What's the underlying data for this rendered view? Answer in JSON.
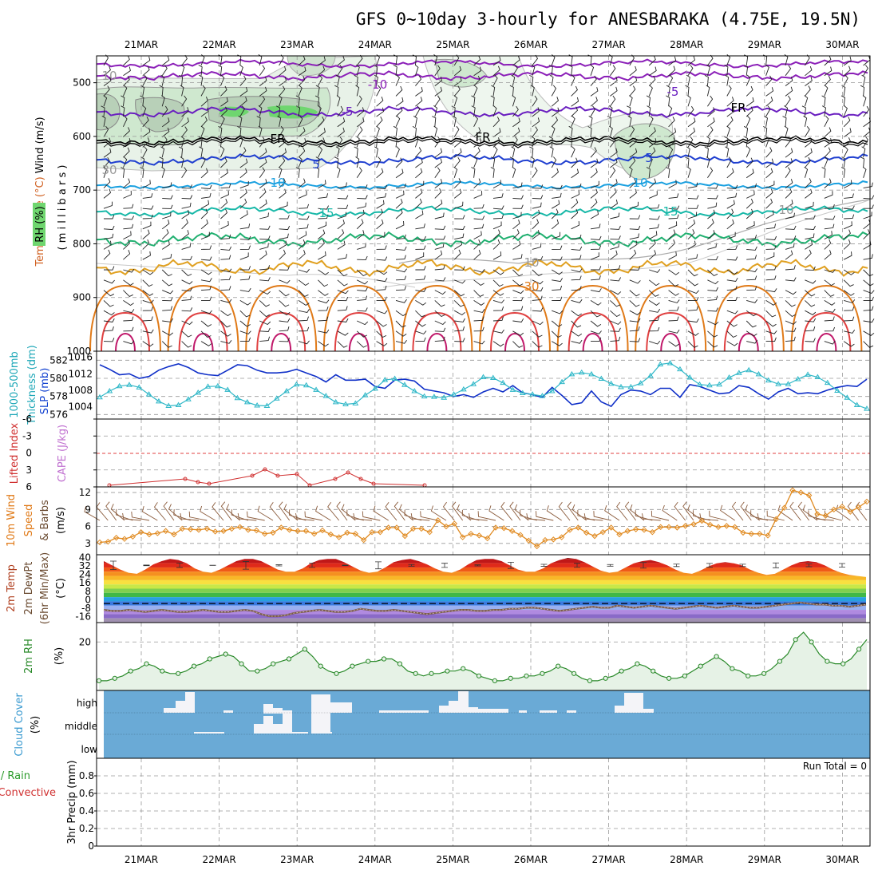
{
  "title": "GFS 0~10day 3-hourly for ANESBARAKA (4.75E, 19.5N)",
  "dates": [
    "21MAR",
    "22MAR",
    "23MAR",
    "24MAR",
    "25MAR",
    "26MAR",
    "27MAR",
    "28MAR",
    "29MAR",
    "30MAR"
  ],
  "colors": {
    "temp_minus10": "#8b1fb8",
    "temp_minus5": "#6a1fc0",
    "temp_5": "#1f3fd0",
    "temp_10": "#1aa0e0",
    "temp_15": "#18b8a8",
    "temp_20": "#20b070",
    "temp_25": "#e0a020",
    "temp_30": "#e07a18",
    "temp_35": "#e04040",
    "temp_40": "#c0186a",
    "thickness": "#1030c8",
    "slp": "#30b8c8",
    "lifted_index": "#d03030",
    "wind_speed": "#e08a20",
    "wind_barb": "#8a5a3a",
    "rh_line": "#2a8a2a",
    "cloud_bg": "#6aaad6",
    "cloud_fill": "#f4f4f8",
    "rh_fill_light": "#cfe8cf",
    "rh_fill_dark": "#6fd66f"
  },
  "panels": {
    "upper": {
      "ylabels": [
        "Wind (m/s)",
        "Temperature (°C)",
        "RH (%)",
        "( m i l l i b a r s )"
      ],
      "yticks": [
        "500",
        "600",
        "700",
        "800",
        "900",
        "1000"
      ],
      "contour_labels": {
        "minus10": "-10",
        "minus5": "-5",
        "fr": "FR",
        "t5": "5",
        "t10": "10",
        "t15": "15",
        "t30": "30",
        "rh10": "10",
        "rh30": "30"
      }
    },
    "thickness": {
      "ylabels": [
        "1000-500mb",
        "Thickness (dm)",
        "SLP (mb)"
      ],
      "yticks_left": [
        "582",
        "580",
        "578",
        "576"
      ],
      "yticks_right": [
        "1016",
        "1012",
        "1008",
        "1004"
      ]
    },
    "lifted": {
      "ylabels": [
        "Lifted Index",
        "CAPE (J/kg)"
      ],
      "yticks": [
        "-6",
        "-3",
        "0",
        "3",
        "6"
      ]
    },
    "wind10": {
      "ylabels": [
        "10m Wind",
        "Speed",
        "& Barbs",
        "(m/s)"
      ],
      "yticks": [
        "12",
        "9",
        "6",
        "3"
      ]
    },
    "temp2m": {
      "ylabels": [
        "2m Temp",
        "2m DewPt",
        "(6hr Min/Max)",
        "(°C)"
      ],
      "yticks": [
        "40",
        "32",
        "24",
        "16",
        "8",
        "0",
        "-8",
        "-16"
      ]
    },
    "rh2m": {
      "ylabels": [
        "2m RH",
        "(%)"
      ],
      "yticks": [
        "20"
      ]
    },
    "cloud": {
      "ylabels": [
        "Cloud Cover",
        "(%)"
      ],
      "levels": [
        "high",
        "middle",
        "low"
      ]
    },
    "precip": {
      "ylabels": [
        "Total / Rain",
        "Convective",
        "3hr Precip (mm)"
      ],
      "yticks": [
        "0.8",
        "0.6",
        "0.4",
        "0.2",
        "0"
      ],
      "run_total": "Run Total = 0"
    }
  },
  "chart_data": [
    {
      "type": "line",
      "title": "1000-500mb Thickness (dm) / SLP (mb)",
      "x_unit": "3-hourly steps from 20MAR 12Z",
      "series": [
        {
          "name": "Thickness (dm)",
          "values": [
            581.5,
            581.0,
            580.4,
            580.5,
            580.0,
            580.2,
            580.9,
            581.3,
            581.6,
            581.2,
            580.6,
            580.4,
            580.3,
            580.9,
            581.5,
            581.4,
            580.9,
            580.6,
            580.6,
            580.7,
            581.0,
            580.6,
            580.2,
            579.6,
            580.4,
            579.8,
            579.8,
            579.9,
            579.1,
            578.9,
            579.8,
            579.9,
            579.7,
            578.8,
            578.6,
            578.4,
            578.0,
            578.2,
            577.9,
            578.5,
            578.9,
            578.5,
            579.2,
            578.4,
            578.2,
            577.9,
            579.0,
            578.1,
            577.1,
            577.3,
            578.6,
            577.4,
            576.9,
            578.2,
            578.7,
            578.6,
            578.2,
            578.9,
            578.9,
            577.9,
            579.3,
            579.1,
            578.7,
            578.3,
            578.4,
            579.2,
            579.0,
            578.3,
            577.7,
            578.5,
            578.9,
            578.3,
            578.4,
            578.3,
            578.7,
            579.0,
            579.2,
            579.1,
            579.9
          ]
        },
        {
          "name": "SLP (mb)",
          "values": [
            1006.3,
            1007.8,
            1009.0,
            1009.3,
            1008.7,
            1007.0,
            1005.3,
            1004.2,
            1004.4,
            1005.8,
            1007.4,
            1008.9,
            1009.0,
            1008.1,
            1006.1,
            1005.1,
            1004.3,
            1004.2,
            1006.0,
            1007.8,
            1009.4,
            1009.2,
            1008.1,
            1006.6,
            1005.1,
            1004.6,
            1004.8,
            1006.8,
            1008.4,
            1010.5,
            1010.8,
            1009.3,
            1007.8,
            1006.5,
            1006.4,
            1006.2,
            1007.0,
            1008.2,
            1009.5,
            1011.2,
            1011.0,
            1009.8,
            1008.1,
            1007.3,
            1007.0,
            1006.6,
            1007.8,
            1010.0,
            1011.9,
            1012.3,
            1011.9,
            1010.8,
            1009.6,
            1008.8,
            1008.8,
            1009.7,
            1011.5,
            1014.3,
            1014.6,
            1013.1,
            1011.1,
            1009.4,
            1009.2,
            1009.4,
            1011.1,
            1012.2,
            1012.9,
            1011.9,
            1010.4,
            1009.5,
            1009.5,
            1010.7,
            1011.8,
            1011.2,
            1009.8,
            1007.9,
            1006.2,
            1004.4,
            1003.5
          ]
        }
      ]
    },
    {
      "type": "line",
      "title": "Lifted Index",
      "ylim": [
        -6,
        6
      ],
      "series": [
        {
          "name": "Lifted Index",
          "values": [
            5.2,
            5.4,
            null,
            null,
            null,
            null,
            null,
            null,
            null,
            null,
            null,
            null,
            null,
            null,
            null,
            null,
            null,
            null,
            null,
            null,
            null,
            null,
            null,
            null,
            null,
            null,
            null,
            null,
            null,
            null,
            null,
            null,
            null,
            null,
            null,
            null,
            null,
            null,
            null,
            null,
            null,
            null,
            null,
            null,
            null,
            null,
            null,
            null,
            null,
            null,
            null,
            null,
            null,
            null,
            null,
            null,
            null,
            null,
            null,
            null,
            null,
            null,
            null,
            null,
            null,
            null,
            null,
            null,
            null,
            null,
            null,
            null,
            null,
            null,
            null,
            null,
            null,
            null,
            null
          ]
        }
      ]
    },
    {
      "type": "line",
      "title": "10m Wind Speed (m/s)",
      "ylim": [
        1,
        13
      ],
      "series": [
        {
          "name": "10m Wind Speed",
          "values": [
            3.2,
            3.3,
            4.0,
            3.8,
            4.2,
            5.0,
            4.6,
            4.8,
            5.2,
            4.6,
            5.6,
            5.5,
            5.4,
            5.6,
            5.1,
            5.2,
            5.6,
            5.9,
            5.4,
            5.3,
            4.7,
            4.9,
            5.8,
            5.4,
            5.2,
            5.2,
            4.7,
            5.3,
            4.6,
            4.1,
            4.9,
            4.7,
            3.6,
            5.0,
            5.0,
            5.8,
            5.8,
            4.3,
            5.6,
            5.6,
            5.0,
            7.1,
            6.0,
            6.5,
            4.1,
            4.7,
            4.4,
            3.9,
            5.8,
            5.7,
            5.2,
            4.5,
            3.5,
            2.5,
            3.6,
            3.7,
            4.1,
            5.4,
            5.8,
            4.9,
            4.3,
            5.0,
            5.8,
            4.6,
            5.2,
            5.5,
            5.4,
            5.0,
            5.9,
            5.9,
            5.8,
            6.1,
            6.4,
            7.0,
            6.3,
            5.9,
            6.1,
            5.9,
            4.9,
            4.7,
            4.7,
            4.4,
            7.3,
            9.3,
            12.4,
            12.0,
            11.5,
            8.2,
            7.9,
            9.0,
            9.5,
            8.6,
            9.4,
            10.4
          ]
        }
      ]
    },
    {
      "type": "area",
      "title": "2m Temp / 2m DewPt (°C)",
      "ylim": [
        -20,
        44
      ],
      "series": [
        {
          "name": "2m Temp",
          "values": [
            38,
            34,
            30,
            27,
            26,
            30,
            35,
            38,
            40,
            39,
            36,
            31,
            28,
            27,
            30,
            34,
            38,
            40,
            40,
            38,
            34,
            30,
            28,
            28,
            31,
            36,
            39,
            40,
            40,
            37,
            33,
            29,
            27,
            28,
            32,
            37,
            39,
            40,
            38,
            35,
            31,
            28,
            27,
            30,
            35,
            39,
            40,
            40,
            38,
            34,
            30,
            28,
            28,
            31,
            36,
            39,
            41,
            40,
            37,
            33,
            29,
            27,
            28,
            32,
            36,
            38,
            39,
            37,
            34,
            30,
            27,
            26,
            29,
            33,
            36,
            37,
            36,
            34,
            30,
            27,
            25,
            26,
            30,
            34,
            37,
            38,
            37,
            34,
            30,
            27,
            25,
            24,
            23
          ]
        },
        {
          "name": "2m DewPt",
          "values": [
            -8,
            -9,
            -9,
            -8,
            -9,
            -10,
            -9,
            -8,
            -9,
            -10,
            -10,
            -9,
            -8,
            -9,
            -10,
            -10,
            -9,
            -8,
            -9,
            -12,
            -14,
            -14,
            -13,
            -11,
            -10,
            -9,
            -8,
            -9,
            -10,
            -10,
            -9,
            -7,
            -8,
            -9,
            -9,
            -8,
            -9,
            -10,
            -11,
            -12,
            -11,
            -10,
            -9,
            -8,
            -8,
            -9,
            -9,
            -8,
            -8,
            -7,
            -7,
            -6,
            -6,
            -7,
            -8,
            -9,
            -8,
            -7,
            -6,
            -5,
            -6,
            -6,
            -4,
            -5,
            -6,
            -5,
            -4,
            -5,
            -6,
            -7,
            -6,
            -5,
            -4,
            -5,
            -6,
            -5,
            -4,
            -5,
            -6,
            -6,
            -5,
            -4,
            -3,
            -2,
            -1,
            -2,
            -3,
            -3,
            -4,
            -4,
            -5,
            -4,
            -3
          ]
        }
      ]
    },
    {
      "type": "area",
      "title": "2m RH (%)",
      "series": [
        {
          "name": "2m RH",
          "values": [
            4,
            4,
            5,
            6,
            8,
            9,
            11,
            10,
            8,
            7,
            7,
            8,
            10,
            11,
            13,
            14,
            15,
            14,
            11,
            8,
            8,
            9,
            11,
            12,
            13,
            15,
            17,
            14,
            10,
            8,
            7,
            8,
            10,
            11,
            12,
            12,
            13,
            13,
            11,
            8,
            7,
            6,
            7,
            7,
            8,
            8,
            9,
            8,
            6,
            5,
            4,
            4,
            5,
            5,
            6,
            6,
            7,
            8,
            10,
            9,
            7,
            5,
            4,
            4,
            5,
            6,
            8,
            9,
            11,
            10,
            8,
            6,
            5,
            5,
            6,
            8,
            10,
            12,
            14,
            12,
            9,
            8,
            6,
            6,
            7,
            9,
            12,
            15,
            21,
            24,
            20,
            15,
            12,
            11,
            11,
            13,
            17,
            21
          ]
        }
      ]
    },
    {
      "type": "bar",
      "title": "3hr Precip (mm)",
      "ylim": [
        0,
        1
      ],
      "series": [
        {
          "name": "Total / Rain",
          "values": []
        },
        {
          "name": "Convective",
          "values": []
        }
      ]
    }
  ]
}
